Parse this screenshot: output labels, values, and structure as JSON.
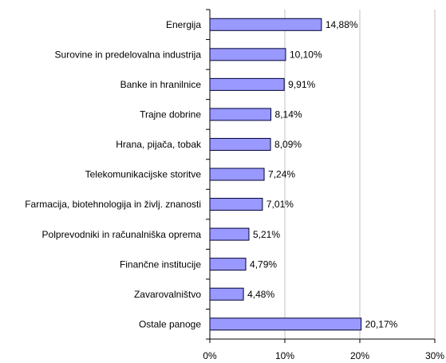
{
  "chart_data": {
    "type": "bar",
    "orientation": "horizontal",
    "categories": [
      "Energija",
      "Surovine in predelovalna industrija",
      "Banke in hranilnice",
      "Trajne dobrine",
      "Hrana, pijača, tobak",
      "Telekomunikacijske storitve",
      "Farmacija, biotehnologija in življ. znanosti",
      "Polprevodniki in računalniška oprema",
      "Finančne institucije",
      "Zavarovalništvo",
      "Ostale panoge"
    ],
    "values": [
      14.88,
      10.1,
      9.91,
      8.14,
      8.09,
      7.24,
      7.01,
      5.21,
      4.79,
      4.48,
      20.17
    ],
    "value_labels": [
      "14,88%",
      "10,10%",
      "9,91%",
      "8,14%",
      "8,09%",
      "7,24%",
      "7,01%",
      "5,21%",
      "4,79%",
      "4,48%",
      "20,17%"
    ],
    "color": "#9999ff",
    "xlim": [
      0,
      30
    ],
    "xticks": [
      {
        "value": 0,
        "label": "0%"
      },
      {
        "value": 10,
        "label": "10%"
      },
      {
        "value": 20,
        "label": "20%"
      },
      {
        "value": 30,
        "label": "30%"
      }
    ],
    "grid": true
  }
}
